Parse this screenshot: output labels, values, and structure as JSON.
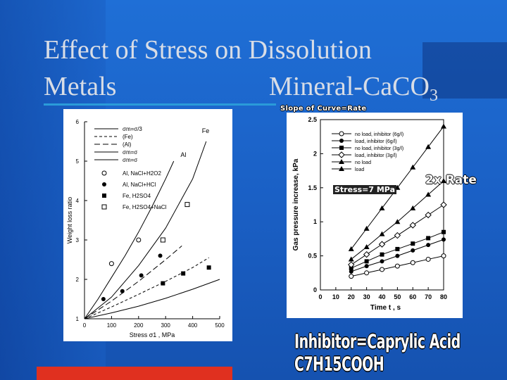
{
  "slide": {
    "title_line1": "Effect of Stress on Dissolution",
    "title_line2_left": "Metals",
    "title_line2_right": "Mineral-CaCO",
    "title_line2_sub": "3",
    "slope_label": "Slope of Curve=Rate",
    "stress_label": "Stress=7 MPa",
    "rate_label": "2x Rate",
    "inhibitor_label": "Inhibitor=Caprylic Acid C7H15COOH",
    "colors": {
      "background": "#1a5fc4",
      "title": "#d8dde6",
      "accent_bar": "#e0301f"
    }
  },
  "chart_data": [
    {
      "type": "scatter",
      "xlabel": "Stress σ1 , MPa",
      "ylabel": "Weight loss ratio",
      "xlim": [
        0,
        500
      ],
      "ylim": [
        1,
        6
      ],
      "x_ticks": [
        0,
        100,
        200,
        300,
        400,
        500
      ],
      "y_ticks": [
        1,
        2,
        3,
        4,
        5,
        6
      ],
      "annotations": [
        "Fe",
        "Al"
      ],
      "lines": [
        {
          "name": "σm=σ/3",
          "legend": "σm=σ/3",
          "dash": "solid",
          "x": [
            0,
            100,
            200,
            300,
            400,
            500
          ],
          "y": [
            1.0,
            1.15,
            1.32,
            1.52,
            1.75,
            2.0
          ]
        },
        {
          "name": "(Fe)",
          "legend": "(Fe)",
          "dash": "dash",
          "x": [
            0,
            100,
            200,
            300,
            400,
            460
          ],
          "y": [
            1.0,
            1.3,
            1.62,
            1.95,
            2.3,
            2.55
          ]
        },
        {
          "name": "(Al)",
          "legend": "(Al)",
          "dash": "longdash",
          "x": [
            0,
            100,
            200,
            300,
            360
          ],
          "y": [
            1.0,
            1.45,
            1.95,
            2.5,
            2.85
          ]
        },
        {
          "name": "σm=σ (Al)",
          "legend": "σm=σ",
          "dash": "solid",
          "x": [
            0,
            50,
            100,
            150,
            200,
            250,
            300,
            330
          ],
          "y": [
            1.0,
            1.5,
            2.05,
            2.6,
            3.2,
            3.85,
            4.55,
            5.0
          ]
        },
        {
          "name": "σm=σ (Fe)",
          "legend": "σm=σ",
          "dash": "solid",
          "x": [
            0,
            100,
            200,
            300,
            400,
            450
          ],
          "y": [
            1.0,
            1.55,
            2.35,
            3.3,
            4.55,
            5.5
          ]
        }
      ],
      "legend_points": [
        {
          "marker": "open-circle",
          "label": "Al, NaCl+H2O2"
        },
        {
          "marker": "filled-circle",
          "label": "Al, NaCl+HCl"
        },
        {
          "marker": "filled-square",
          "label": "Fe, H2SO4"
        },
        {
          "marker": "open-square",
          "label": "Fe, H2SO4+NaCl"
        }
      ],
      "series": [
        {
          "name": "Al, NaCl+H2O2",
          "marker": "open-circle",
          "x": [
            100,
            200
          ],
          "y": [
            2.4,
            3.0
          ]
        },
        {
          "name": "Al, NaCl+HCl",
          "marker": "filled-circle",
          "x": [
            70,
            140,
            210,
            280
          ],
          "y": [
            1.5,
            1.7,
            2.1,
            2.6
          ]
        },
        {
          "name": "Fe, H2SO4",
          "marker": "filled-square",
          "x": [
            290,
            365,
            460
          ],
          "y": [
            1.9,
            2.15,
            2.3
          ]
        },
        {
          "name": "Fe, H2SO4+NaCl",
          "marker": "open-square",
          "x": [
            290,
            380
          ],
          "y": [
            3.0,
            3.9
          ]
        }
      ]
    },
    {
      "type": "line",
      "xlabel": "Time t ,  s",
      "ylabel": "Gas pressure increase,  kPa",
      "xlim": [
        0,
        80
      ],
      "ylim": [
        0,
        2.5
      ],
      "x_ticks": [
        0,
        10,
        20,
        30,
        40,
        50,
        60,
        70,
        80
      ],
      "y_ticks": [
        "0",
        "0.5",
        "1",
        "1.5",
        "2",
        "2.5"
      ],
      "series": [
        {
          "name": "no load, inhibitor (6g/l)",
          "marker": "open-circle",
          "x": [
            20,
            30,
            40,
            50,
            60,
            70,
            80
          ],
          "y": [
            0.2,
            0.25,
            0.3,
            0.35,
            0.4,
            0.45,
            0.5
          ]
        },
        {
          "name": "load, inhibitor (6g/l)",
          "marker": "filled-circle",
          "x": [
            20,
            30,
            40,
            50,
            60,
            70,
            80
          ],
          "y": [
            0.27,
            0.35,
            0.42,
            0.5,
            0.58,
            0.66,
            0.74
          ]
        },
        {
          "name": "no load, inhibitor (3g/l)",
          "marker": "filled-square",
          "x": [
            20,
            30,
            40,
            50,
            60,
            70,
            80
          ],
          "y": [
            0.32,
            0.42,
            0.52,
            0.6,
            0.68,
            0.76,
            0.85
          ]
        },
        {
          "name": "load, inhibitor (3g/l)",
          "marker": "open-diamond",
          "x": [
            20,
            30,
            40,
            50,
            60,
            70,
            80
          ],
          "y": [
            0.37,
            0.52,
            0.67,
            0.8,
            0.95,
            1.1,
            1.25
          ]
        },
        {
          "name": "no load",
          "marker": "filled-triangle",
          "x": [
            20,
            30,
            40,
            50,
            60,
            70,
            80
          ],
          "y": [
            0.45,
            0.63,
            0.82,
            1.0,
            1.2,
            1.4,
            1.6
          ]
        },
        {
          "name": "load",
          "marker": "filled-triangle",
          "x": [
            20,
            30,
            40,
            50,
            60,
            70,
            80
          ],
          "y": [
            0.6,
            0.9,
            1.2,
            1.5,
            1.8,
            2.1,
            2.4
          ]
        }
      ]
    }
  ]
}
